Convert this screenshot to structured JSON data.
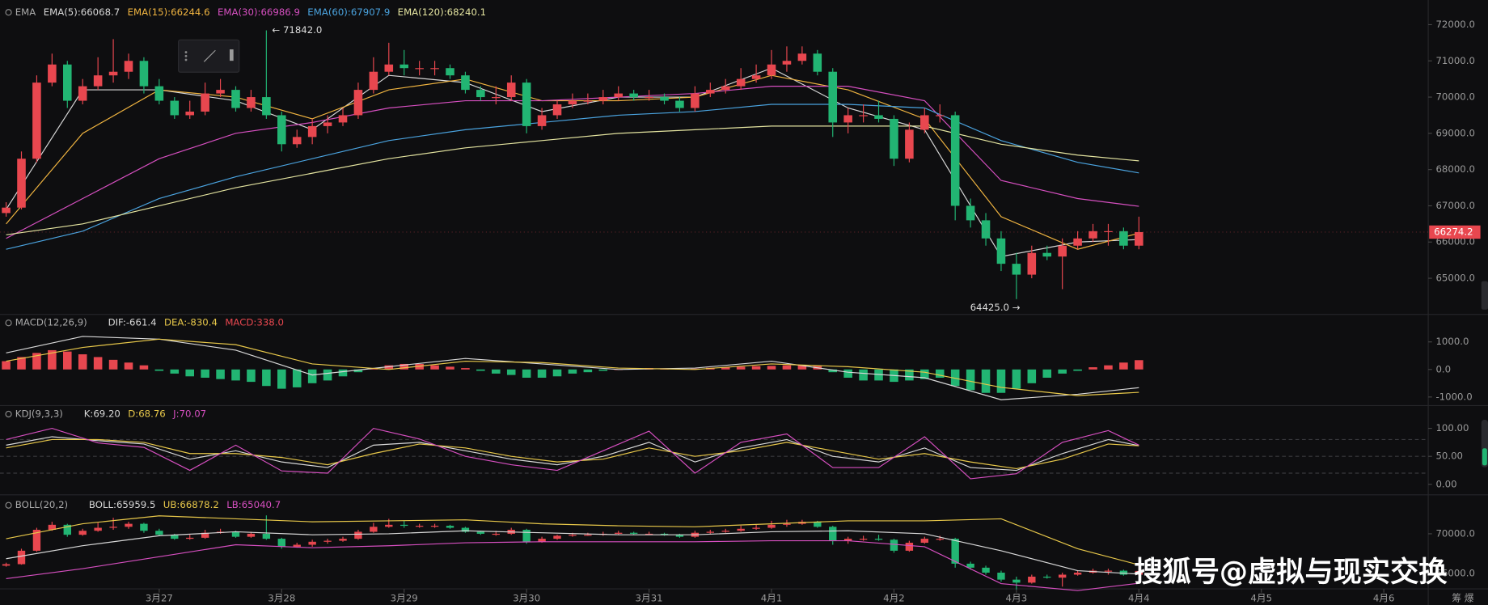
{
  "chart_data": [
    {
      "type": "candlestick",
      "indicator_label": "EMA",
      "up_color": "#e8474f",
      "down_color": "#22b573",
      "xlim": [
        -0.4,
        92.9
      ],
      "xticks": [
        {
          "value": 10,
          "label": "3月27"
        },
        {
          "value": 18,
          "label": "3月28"
        },
        {
          "value": 26,
          "label": "3月29"
        },
        {
          "value": 34,
          "label": "3月30"
        },
        {
          "value": 42,
          "label": "3月31"
        },
        {
          "value": 50,
          "label": "4月1"
        },
        {
          "value": 58,
          "label": "4月2"
        },
        {
          "value": 66,
          "label": "4月3"
        },
        {
          "value": 74,
          "label": "4月4"
        },
        {
          "value": 82,
          "label": "4月5"
        },
        {
          "value": 90,
          "label": "4月6"
        }
      ],
      "ylim": [
        64030,
        72680
      ],
      "yticks": [
        {
          "value": 65000,
          "label": "65000.0"
        },
        {
          "value": 66000,
          "label": "66000.0"
        },
        {
          "value": 67000,
          "label": "67000.0"
        },
        {
          "value": 68000,
          "label": "68000.0"
        },
        {
          "value": 69000,
          "label": "69000.0"
        },
        {
          "value": 70000,
          "label": "70000.0"
        },
        {
          "value": 71000,
          "label": "71000.0"
        },
        {
          "value": 72000,
          "label": "72000.0"
        }
      ],
      "candles": [
        [
          66800,
          67100,
          66700,
          66950
        ],
        [
          66950,
          68500,
          66900,
          68300
        ],
        [
          68300,
          70600,
          68200,
          70400
        ],
        [
          70400,
          71200,
          70300,
          70900
        ],
        [
          70900,
          71000,
          69700,
          69900
        ],
        [
          69900,
          70500,
          69800,
          70300
        ],
        [
          70300,
          71100,
          70200,
          70600
        ],
        [
          70600,
          71600,
          70400,
          70700
        ],
        [
          70700,
          71200,
          70500,
          71000
        ],
        [
          71000,
          71100,
          70100,
          70300
        ],
        [
          70300,
          70500,
          69800,
          69900
        ],
        [
          69900,
          70000,
          69400,
          69500
        ],
        [
          69500,
          69900,
          69400,
          69600
        ],
        [
          69600,
          70400,
          69500,
          70100
        ],
        [
          70100,
          70500,
          70000,
          70200
        ],
        [
          70200,
          70300,
          69600,
          69700
        ],
        [
          69700,
          70200,
          69600,
          70000
        ],
        [
          70000,
          71842,
          69400,
          69500
        ],
        [
          69500,
          69600,
          68500,
          68700
        ],
        [
          68700,
          69100,
          68600,
          68900
        ],
        [
          68900,
          69400,
          68700,
          69200
        ],
        [
          69200,
          69500,
          69000,
          69300
        ],
        [
          69300,
          69700,
          69200,
          69500
        ],
        [
          69500,
          70400,
          69400,
          70200
        ],
        [
          70200,
          71100,
          70100,
          70700
        ],
        [
          70700,
          71500,
          70600,
          70900
        ],
        [
          70900,
          71300,
          70600,
          70800
        ],
        [
          70800,
          71000,
          70600,
          70800
        ],
        [
          70800,
          71000,
          70600,
          70800
        ],
        [
          70800,
          70900,
          70500,
          70600
        ],
        [
          70600,
          70700,
          70100,
          70200
        ],
        [
          70200,
          70300,
          69900,
          70000
        ],
        [
          70000,
          70300,
          69800,
          70000
        ],
        [
          70000,
          70600,
          69900,
          70400
        ],
        [
          70400,
          70500,
          69000,
          69200
        ],
        [
          69200,
          69700,
          69100,
          69500
        ],
        [
          69500,
          69900,
          69400,
          69800
        ],
        [
          69800,
          70100,
          69700,
          69900
        ],
        [
          69900,
          70100,
          69800,
          69900
        ],
        [
          69900,
          70200,
          69800,
          70000
        ],
        [
          70000,
          70300,
          69900,
          70100
        ],
        [
          70100,
          70200,
          69900,
          70000
        ],
        [
          70000,
          70200,
          69900,
          70000
        ],
        [
          70000,
          70100,
          69800,
          69900
        ],
        [
          69900,
          70000,
          69600,
          69700
        ],
        [
          69700,
          70300,
          69600,
          70100
        ],
        [
          70100,
          70400,
          70000,
          70200
        ],
        [
          70200,
          70500,
          70100,
          70300
        ],
        [
          70300,
          70800,
          70200,
          70500
        ],
        [
          70500,
          70900,
          70400,
          70600
        ],
        [
          70600,
          71300,
          70500,
          70900
        ],
        [
          70900,
          71400,
          70700,
          71000
        ],
        [
          71000,
          71400,
          70900,
          71200
        ],
        [
          71200,
          71300,
          70600,
          70700
        ],
        [
          70700,
          70800,
          68900,
          69300
        ],
        [
          69300,
          69700,
          69000,
          69500
        ],
        [
          69500,
          69800,
          69300,
          69500
        ],
        [
          69500,
          69900,
          69300,
          69400
        ],
        [
          69400,
          69500,
          68100,
          68300
        ],
        [
          68300,
          69300,
          68200,
          69100
        ],
        [
          69100,
          69700,
          69000,
          69500
        ],
        [
          69500,
          69800,
          69300,
          69500
        ],
        [
          69500,
          69600,
          66600,
          67000
        ],
        [
          67000,
          67200,
          66400,
          66600
        ],
        [
          66600,
          66800,
          65900,
          66100
        ],
        [
          66100,
          66300,
          65200,
          65400
        ],
        [
          65400,
          65700,
          64425,
          65100
        ],
        [
          65100,
          65900,
          65000,
          65700
        ],
        [
          65700,
          65900,
          65500,
          65600
        ],
        [
          65600,
          66100,
          64700,
          65900
        ],
        [
          65900,
          66300,
          65800,
          66100
        ],
        [
          66100,
          66500,
          66000,
          66300
        ],
        [
          66300,
          66500,
          65900,
          66300
        ],
        [
          66300,
          66400,
          65800,
          65900
        ],
        [
          65900,
          66700,
          65800,
          66274.2
        ]
      ],
      "x": [
        0,
        5,
        10,
        15,
        20,
        25,
        30,
        35,
        40,
        45,
        50,
        55,
        60,
        65,
        70,
        74
      ],
      "series": [
        {
          "name": "EMA(5):66068.7",
          "color": "#d8d8d8",
          "values": [
            66900,
            70200,
            70200,
            69900,
            69100,
            70600,
            70400,
            69600,
            70000,
            70000,
            70800,
            69700,
            69100,
            65600,
            66000,
            66068.7
          ]
        },
        {
          "name": "EMA(15):66244.6",
          "color": "#f0b440",
          "values": [
            66500,
            69000,
            70200,
            70000,
            69400,
            70200,
            70500,
            69900,
            69900,
            70000,
            70600,
            70200,
            69400,
            66700,
            65800,
            66244.6
          ]
        },
        {
          "name": "EMA(30):66986.9",
          "color": "#d64fc0",
          "values": [
            66100,
            67200,
            68300,
            69000,
            69300,
            69700,
            69900,
            69900,
            70000,
            70100,
            70300,
            70300,
            69900,
            67700,
            67200,
            66986.9
          ]
        },
        {
          "name": "EMA(60):67907.9",
          "color": "#4aa3df",
          "values": [
            65800,
            66300,
            67200,
            67800,
            68300,
            68800,
            69100,
            69300,
            69500,
            69600,
            69800,
            69800,
            69700,
            68800,
            68200,
            67907.9
          ]
        },
        {
          "name": "EMA(120):68240.1",
          "color": "#e4e4a0",
          "values": [
            66200,
            66500,
            67000,
            67500,
            67900,
            68300,
            68600,
            68800,
            69000,
            69100,
            69200,
            69200,
            69200,
            68700,
            68400,
            68240.1
          ]
        }
      ],
      "annotations": [
        {
          "text": "← 71842.0",
          "x": 17,
          "value": 71842,
          "side": "right"
        },
        {
          "text": "64425.0 →",
          "x": 66,
          "value": 64425,
          "side": "left"
        }
      ],
      "current_price": {
        "value": 66274.2,
        "label": "66274.2",
        "color": "#e8474f"
      }
    },
    {
      "type": "macd",
      "title": "MACD(12,26,9)",
      "xlim": [
        -0.4,
        92.9
      ],
      "ylim": [
        -1345,
        1931
      ],
      "yticks": [
        {
          "value": -1000,
          "label": "-1000.0"
        },
        {
          "value": 0,
          "label": "0.0"
        },
        {
          "value": 1000,
          "label": "1000.0"
        }
      ],
      "histogram": {
        "name": "MACD:338.0",
        "color": "#e8474f",
        "up_color": "#e8474f",
        "down_color": "#22b573",
        "values": [
          300,
          450,
          600,
          700,
          650,
          550,
          450,
          350,
          250,
          150,
          -50,
          -150,
          -250,
          -300,
          -350,
          -400,
          -450,
          -600,
          -700,
          -650,
          -500,
          -400,
          -250,
          -100,
          50,
          150,
          200,
          200,
          150,
          100,
          50,
          -50,
          -150,
          -200,
          -300,
          -300,
          -250,
          -150,
          -100,
          -50,
          0,
          30,
          50,
          40,
          20,
          30,
          60,
          80,
          100,
          120,
          130,
          150,
          140,
          120,
          -100,
          -300,
          -400,
          -400,
          -450,
          -400,
          -350,
          -300,
          -600,
          -750,
          -850,
          -850,
          -700,
          -500,
          -300,
          -150,
          -50,
          80,
          150,
          250,
          338.0
        ]
      },
      "x": [
        0,
        5,
        10,
        15,
        20,
        25,
        30,
        35,
        40,
        45,
        50,
        55,
        60,
        65,
        70,
        74
      ],
      "series": [
        {
          "name": "DIF:-661.4",
          "color": "#d8d8d8",
          "values": [
            600,
            1200,
            1100,
            700,
            -200,
            100,
            400,
            200,
            0,
            50,
            300,
            -100,
            -300,
            -1100,
            -900,
            -661.4
          ]
        },
        {
          "name": "DEA:-830.4",
          "color": "#e8c84a",
          "values": [
            300,
            800,
            1100,
            900,
            200,
            0,
            300,
            250,
            50,
            0,
            200,
            100,
            -100,
            -650,
            -950,
            -830.4
          ]
        }
      ]
    },
    {
      "type": "kdj",
      "title": "KDJ(9,3,3)",
      "xlim": [
        -0.4,
        92.9
      ],
      "ylim": [
        -17,
        139
      ],
      "yticks": [
        {
          "value": 0,
          "label": "0.00"
        },
        {
          "value": 50,
          "label": "50.00"
        },
        {
          "value": 100,
          "label": "100.00"
        }
      ],
      "hlines": [
        20,
        50,
        80
      ],
      "x": [
        0,
        3,
        6,
        9,
        12,
        15,
        18,
        21,
        24,
        27,
        30,
        33,
        36,
        39,
        42,
        45,
        48,
        51,
        54,
        57,
        60,
        63,
        66,
        69,
        72,
        74
      ],
      "series": [
        {
          "name": "K:69.20",
          "color": "#d8d8d8",
          "values": [
            70,
            85,
            78,
            72,
            45,
            60,
            40,
            30,
            70,
            75,
            60,
            45,
            35,
            50,
            75,
            40,
            65,
            80,
            50,
            40,
            65,
            30,
            25,
            55,
            80,
            69.2
          ]
        },
        {
          "name": "D:68.76",
          "color": "#e8c84a",
          "values": [
            65,
            80,
            80,
            75,
            55,
            55,
            48,
            35,
            55,
            72,
            65,
            50,
            40,
            45,
            65,
            50,
            60,
            75,
            60,
            45,
            55,
            40,
            28,
            45,
            72,
            68.76
          ]
        },
        {
          "name": "J:70.07",
          "color": "#d64fc0",
          "values": [
            80,
            100,
            74,
            66,
            25,
            70,
            24,
            20,
            100,
            81,
            50,
            35,
            25,
            60,
            95,
            20,
            75,
            90,
            30,
            30,
            85,
            10,
            19,
            75,
            96,
            70.07
          ]
        }
      ]
    },
    {
      "type": "boll",
      "title": "BOLL(20,2)",
      "xlim": [
        -0.4,
        92.9
      ],
      "ylim": [
        62857,
        73810
      ],
      "yticks": [
        {
          "value": 66000,
          "label": "66000.0"
        },
        {
          "value": 70000,
          "label": "70000.0"
        }
      ],
      "x": [
        0,
        5,
        10,
        15,
        20,
        25,
        30,
        35,
        40,
        45,
        50,
        55,
        60,
        65,
        70,
        74
      ],
      "series": [
        {
          "name": "BOLL:65959.5",
          "color": "#d8d8d8",
          "values": [
            67500,
            68800,
            69800,
            70200,
            69900,
            70000,
            70300,
            70100,
            69900,
            69900,
            70200,
            70300,
            70000,
            68300,
            66300,
            65959.5
          ]
        },
        {
          "name": "UB:66878.2",
          "color": "#e8c84a",
          "values": [
            69500,
            71000,
            71800,
            71500,
            71200,
            71300,
            71400,
            71000,
            70800,
            70700,
            71000,
            71300,
            71300,
            71500,
            68500,
            66878.2
          ]
        },
        {
          "name": "LB:65040.7",
          "color": "#d64fc0",
          "values": [
            65500,
            66500,
            67700,
            68900,
            68600,
            68800,
            69100,
            69200,
            69200,
            69200,
            69300,
            69300,
            68700,
            65000,
            64300,
            65040.7
          ]
        }
      ]
    }
  ],
  "watermark": "搜狐号@虚拟与现实交换",
  "footer_right": "筹 爆"
}
